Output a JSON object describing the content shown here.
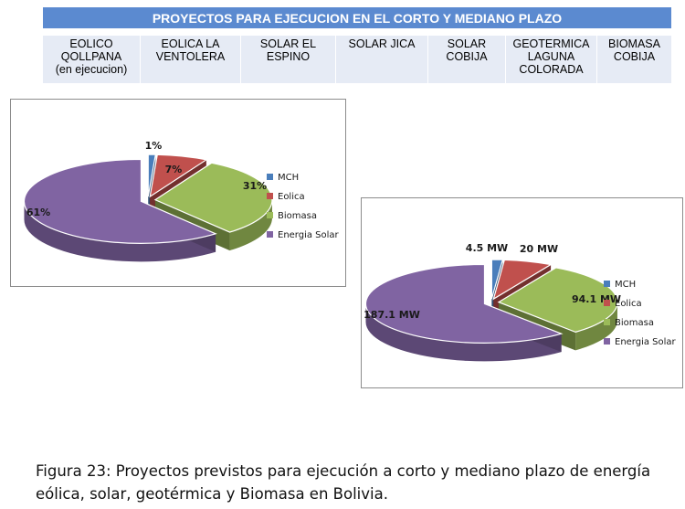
{
  "table": {
    "title": "PROYECTOS PARA EJECUCION EN EL CORTO Y MEDIANO PLAZO",
    "cells": [
      "EOLICO\nQOLLPANA\n(en ejecucion)",
      "EOLICA LA\nVENTOLERA",
      "SOLAR EL\nESPINO",
      "SOLAR JICA",
      "SOLAR\nCOBIJA",
      "GEOTERMICA\nLAGUNA\nCOLORADA",
      "BIOMASA\nCOBIJA"
    ]
  },
  "colors": {
    "title_bg": "#5b8ad0",
    "row_bg": "#e6ebf5",
    "mch": "#4a7ebb",
    "eolica": "#c0504d",
    "biomasa": "#9bbb59",
    "energia_solar": "#8064a2"
  },
  "chart_data": [
    {
      "type": "pie",
      "style": "3d-exploded",
      "slices": [
        {
          "name": "MCH",
          "value": 1,
          "label": "1%"
        },
        {
          "name": "Eolica",
          "value": 7,
          "label": "7%"
        },
        {
          "name": "Biomasa",
          "value": 31,
          "label": "31%"
        },
        {
          "name": "Energia Solar",
          "value": 61,
          "label": "61%"
        }
      ],
      "legend": [
        "MCH",
        "Eolica",
        "Biomasa",
        "Energia Solar"
      ],
      "legend_position": "right"
    },
    {
      "type": "pie",
      "style": "3d-exploded",
      "slices": [
        {
          "name": "MCH",
          "value": 4.5,
          "label": "4.5 MW"
        },
        {
          "name": "Eolica",
          "value": 20,
          "label": "20 MW"
        },
        {
          "name": "Biomasa",
          "value": 94.1,
          "label": "94.1 MW"
        },
        {
          "name": "Energia Solar",
          "value": 187.1,
          "label": "187.1 MW"
        }
      ],
      "legend": [
        "MCH",
        "Eolica",
        "Biomasa",
        "Energia Solar"
      ],
      "legend_position": "right"
    }
  ],
  "caption": {
    "label": "Figura 23",
    "text": ": Proyectos previstos para ejecución a corto y mediano plazo de energía eólica, solar, geotérmica y Biomasa en Bolivia."
  }
}
